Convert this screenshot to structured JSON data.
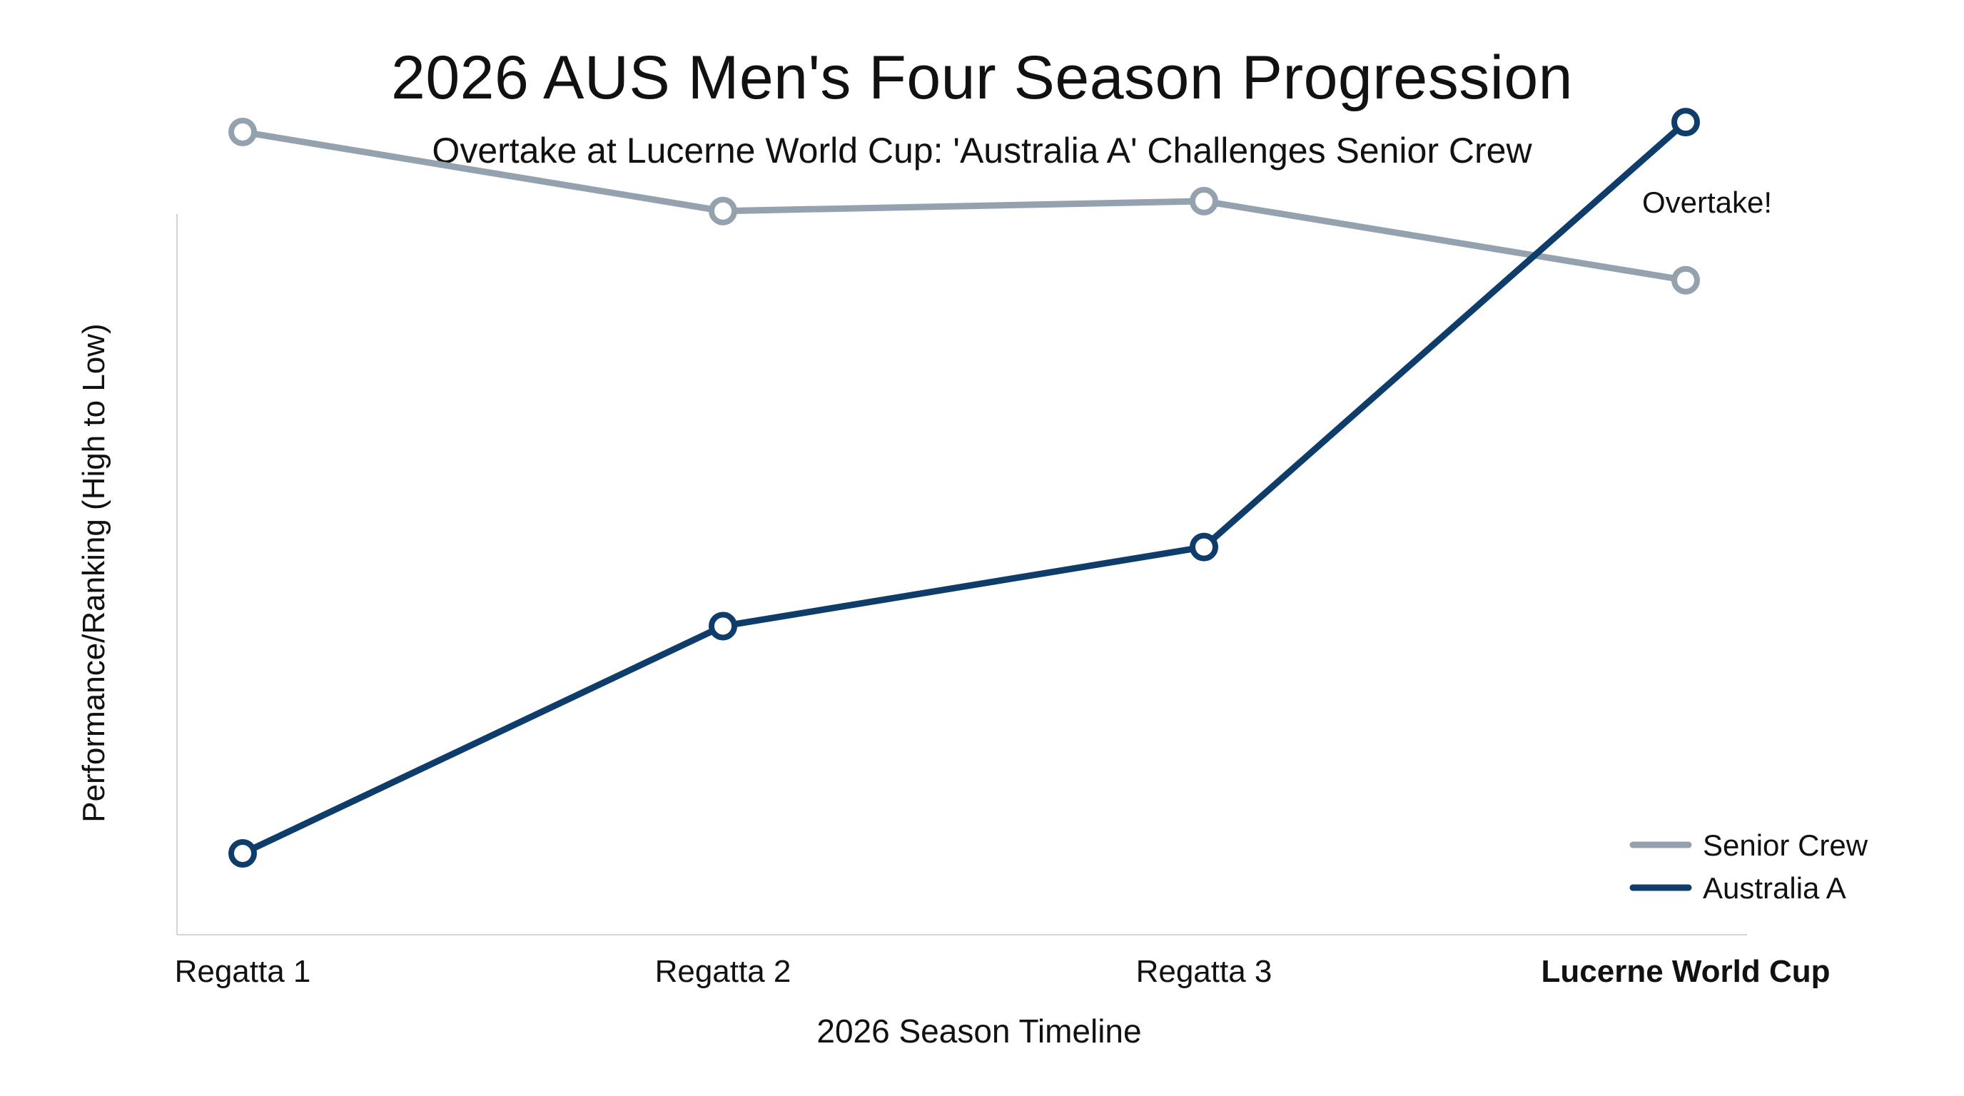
{
  "chart_data": {
    "type": "line",
    "title": "2026 AUS Men's Four Season Progression",
    "subtitle": "Overtake at Lucerne World Cup: 'Australia A' Challenges Senior Crew",
    "xlabel": "2026 Season Timeline",
    "ylabel": "Performance/Ranking (High to Low)",
    "categories": [
      "Regatta 1",
      "Regatta 2",
      "Regatta 3",
      "Lucerne World Cup"
    ],
    "highlight_category": "Lucerne World Cup",
    "ylim": [
      0,
      100
    ],
    "y_ticks_shown": false,
    "grid": false,
    "legend_position": "bottom-right",
    "series": [
      {
        "name": "Senior Crew",
        "color": "#94a1ae",
        "values": [
          93,
          85,
          86,
          78
        ]
      },
      {
        "name": "Australia A",
        "color": "#0f3d6b",
        "values": [
          20,
          43,
          51,
          94
        ]
      }
    ],
    "annotations": [
      {
        "text": "Overtake!",
        "category": "Lucerne World Cup",
        "y": 86
      }
    ]
  }
}
